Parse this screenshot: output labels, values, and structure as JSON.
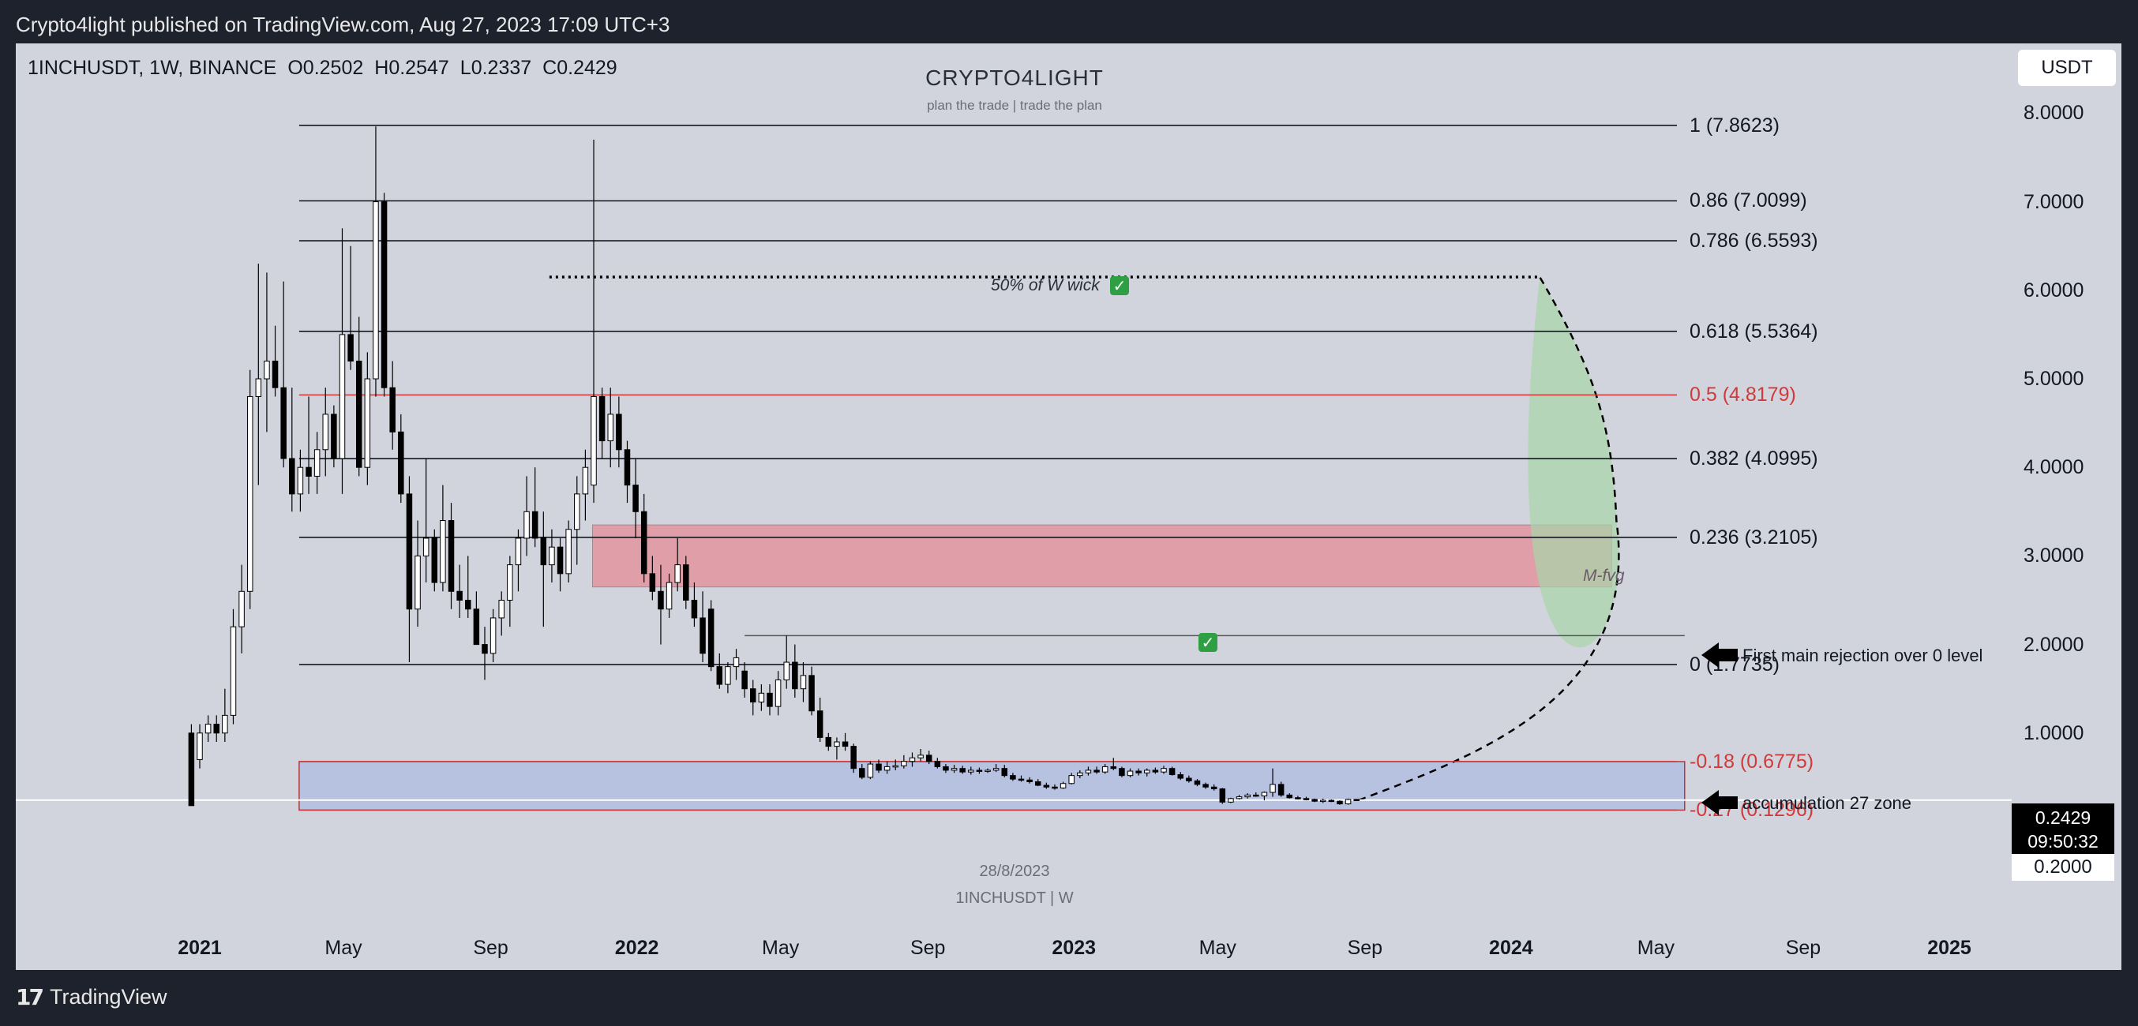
{
  "header": {
    "publisher": "Crypto4light published on TradingView.com, Aug 27, 2023 17:09 UTC+3"
  },
  "footer": {
    "brand": "TradingView",
    "logo_icon": "tradingview-logo-icon"
  },
  "legend": {
    "symbol": "1INCHUSDT, 1W, BINANCE",
    "open": "O0.2502",
    "high": "H0.2547",
    "low": "L0.2337",
    "close": "C0.2429"
  },
  "currency_button": "USDT",
  "watermark": {
    "title": "CRYPTO4LIGHT",
    "subtitle": "plan the trade | trade the plan",
    "date": "28/8/2023",
    "symbol": "1INCHUSDT | W"
  },
  "last_price": {
    "price": "0.2429",
    "countdown": "09:50:32",
    "round_level": "0.2000"
  },
  "annotations": {
    "wick": "50% of W wick",
    "fvg": "M-fvg",
    "rejection": "First main rejection over 0 level",
    "accumulation": "accumulation 27 zone"
  },
  "colors": {
    "background": "#d1d4dc",
    "candle_up": "#ffffff",
    "candle_down": "#000000",
    "fib_line": "#131722",
    "fib_red": "#d03a3a",
    "fvg_zone": "#e3959f",
    "accumulation_zone": "#b4bfe0",
    "projection": "#a8d5a8"
  },
  "chart_data": {
    "type": "candlestick",
    "symbol": "1INCHUSDT",
    "timeframe": "1W",
    "exchange": "BINANCE",
    "y_axis": {
      "ticks": [
        "8.0000",
        "7.0000",
        "6.0000",
        "5.0000",
        "4.0000",
        "3.0000",
        "2.0000",
        "1.0000"
      ],
      "range": [
        -1.1,
        8.5
      ]
    },
    "x_axis": {
      "ticks": [
        {
          "label": "2021",
          "bold": true,
          "date": "2021-01-01"
        },
        {
          "label": "May",
          "bold": false,
          "date": "2021-05-01"
        },
        {
          "label": "Sep",
          "bold": false,
          "date": "2021-09-01"
        },
        {
          "label": "2022",
          "bold": true,
          "date": "2022-01-01"
        },
        {
          "label": "May",
          "bold": false,
          "date": "2022-05-01"
        },
        {
          "label": "Sep",
          "bold": false,
          "date": "2022-09-01"
        },
        {
          "label": "2023",
          "bold": true,
          "date": "2023-01-01"
        },
        {
          "label": "May",
          "bold": false,
          "date": "2023-05-01"
        },
        {
          "label": "Sep",
          "bold": false,
          "date": "2023-09-01"
        },
        {
          "label": "2024",
          "bold": true,
          "date": "2024-01-01"
        },
        {
          "label": "May",
          "bold": false,
          "date": "2024-05-01"
        },
        {
          "label": "Sep",
          "bold": false,
          "date": "2024-09-01"
        },
        {
          "label": "2025",
          "bold": true,
          "date": "2025-01-01"
        }
      ]
    },
    "fib_levels": [
      {
        "label": "1 (7.8623)",
        "value": 7.8623,
        "color": "black"
      },
      {
        "label": "0.86 (7.0099)",
        "value": 7.0099,
        "color": "black"
      },
      {
        "label": "0.786 (6.5593)",
        "value": 6.5593,
        "color": "black"
      },
      {
        "label": "0.618 (5.5364)",
        "value": 5.5364,
        "color": "black"
      },
      {
        "label": "0.5 (4.8179)",
        "value": 4.8179,
        "color": "red"
      },
      {
        "label": "0.382 (4.0995)",
        "value": 4.0995,
        "color": "black"
      },
      {
        "label": "0.236 (3.2105)",
        "value": 3.2105,
        "color": "black"
      },
      {
        "label": "0 (1.7735)",
        "value": 1.7735,
        "color": "black"
      },
      {
        "label": "-0.18 (0.6775)",
        "value": 0.6775,
        "color": "red"
      },
      {
        "label": "-0.27 (0.1296)",
        "value": 0.1296,
        "color": "red"
      }
    ],
    "zones": [
      {
        "name": "M-fvg",
        "from": "2021-11-25",
        "to": "2024-03-25",
        "low": 2.65,
        "high": 3.35
      },
      {
        "name": "accumulation 27 zone",
        "from": "2021-03-25",
        "to": "2024-05-25",
        "low": 0.1296,
        "high": 0.6775
      }
    ],
    "lines": [
      {
        "name": "50% of W wick",
        "from": "2021-10-20",
        "to": "2024-01-25",
        "value": 6.15,
        "style": "dotted"
      },
      {
        "name": "First main rejection over 0 level",
        "from": "2022-04-01",
        "to": "2024-05-25",
        "value": 2.1
      }
    ],
    "projection": {
      "from": "2023-08-27",
      "start": 0.2429,
      "peak_date": "2024-01-25",
      "peak": 6.15,
      "end_date": "2024-03-29",
      "end": 3.4
    },
    "candles": [
      [
        "2020-12-25",
        1.0,
        1.1,
        0.18,
        0.18
      ],
      [
        "2021-01-01",
        0.7,
        1.1,
        0.6,
        1.0
      ],
      [
        "2021-01-08",
        1.0,
        1.2,
        0.9,
        1.1
      ],
      [
        "2021-01-15",
        1.1,
        1.2,
        0.9,
        1.0
      ],
      [
        "2021-01-22",
        1.0,
        1.5,
        0.9,
        1.2
      ],
      [
        "2021-01-29",
        1.2,
        2.4,
        1.1,
        2.2
      ],
      [
        "2021-02-05",
        2.2,
        2.9,
        1.9,
        2.6
      ],
      [
        "2021-02-12",
        2.6,
        5.1,
        2.4,
        4.8
      ],
      [
        "2021-02-19",
        4.8,
        6.3,
        3.8,
        5.0
      ],
      [
        "2021-02-26",
        5.0,
        6.2,
        4.4,
        5.2
      ],
      [
        "2021-03-05",
        5.2,
        5.6,
        4.8,
        4.9
      ],
      [
        "2021-03-12",
        4.9,
        6.1,
        4.0,
        4.1
      ],
      [
        "2021-03-19",
        4.1,
        4.9,
        3.5,
        3.7
      ],
      [
        "2021-03-26",
        3.7,
        4.2,
        3.5,
        4.0
      ],
      [
        "2021-04-02",
        4.0,
        4.8,
        3.7,
        3.9
      ],
      [
        "2021-04-09",
        3.9,
        4.4,
        3.7,
        4.2
      ],
      [
        "2021-04-16",
        4.2,
        4.9,
        3.9,
        4.6
      ],
      [
        "2021-04-23",
        4.6,
        4.7,
        4.0,
        4.1
      ],
      [
        "2021-04-30",
        4.1,
        6.7,
        3.7,
        5.5
      ],
      [
        "2021-05-07",
        5.5,
        6.5,
        5.1,
        5.2
      ],
      [
        "2021-05-14",
        5.2,
        5.7,
        3.9,
        4.0
      ],
      [
        "2021-05-21",
        4.0,
        5.3,
        3.8,
        5.0
      ],
      [
        "2021-05-28",
        5.0,
        7.85,
        4.8,
        7.0
      ],
      [
        "2021-06-04",
        7.0,
        7.1,
        4.8,
        4.9
      ],
      [
        "2021-06-11",
        4.9,
        5.2,
        4.2,
        4.4
      ],
      [
        "2021-06-18",
        4.4,
        4.6,
        3.6,
        3.7
      ],
      [
        "2021-06-25",
        3.7,
        3.9,
        1.8,
        2.4
      ],
      [
        "2021-07-02",
        2.4,
        3.4,
        2.2,
        3.0
      ],
      [
        "2021-07-09",
        3.0,
        4.1,
        2.7,
        3.2
      ],
      [
        "2021-07-16",
        3.2,
        3.3,
        2.6,
        2.7
      ],
      [
        "2021-07-23",
        2.7,
        3.8,
        2.6,
        3.4
      ],
      [
        "2021-07-30",
        3.4,
        3.6,
        2.4,
        2.6
      ],
      [
        "2021-08-06",
        2.6,
        2.9,
        2.3,
        2.5
      ],
      [
        "2021-08-13",
        2.5,
        3.0,
        2.3,
        2.4
      ],
      [
        "2021-08-20",
        2.4,
        2.6,
        2.0,
        2.0
      ],
      [
        "2021-08-27",
        2.0,
        2.2,
        1.6,
        1.9
      ],
      [
        "2021-09-03",
        1.9,
        2.4,
        1.8,
        2.3
      ],
      [
        "2021-09-10",
        2.3,
        2.6,
        2.1,
        2.5
      ],
      [
        "2021-09-17",
        2.5,
        3.0,
        2.2,
        2.9
      ],
      [
        "2021-09-24",
        2.9,
        3.3,
        2.6,
        3.2
      ],
      [
        "2021-10-01",
        3.2,
        3.9,
        3.0,
        3.5
      ],
      [
        "2021-10-08",
        3.5,
        4.0,
        3.1,
        3.2
      ],
      [
        "2021-10-15",
        3.2,
        3.5,
        2.2,
        2.9
      ],
      [
        "2021-10-22",
        2.9,
        3.3,
        2.7,
        3.1
      ],
      [
        "2021-10-29",
        3.1,
        3.2,
        2.6,
        2.8
      ],
      [
        "2021-11-05",
        2.8,
        3.4,
        2.7,
        3.3
      ],
      [
        "2021-11-12",
        3.3,
        3.9,
        2.9,
        3.7
      ],
      [
        "2021-11-19",
        3.7,
        4.2,
        3.4,
        4.0
      ],
      [
        "2021-11-26",
        3.8,
        7.7,
        3.6,
        4.8
      ],
      [
        "2021-12-03",
        4.8,
        4.9,
        4.1,
        4.3
      ],
      [
        "2021-12-10",
        4.3,
        4.9,
        4.0,
        4.6
      ],
      [
        "2021-12-17",
        4.6,
        4.8,
        4.0,
        4.2
      ],
      [
        "2021-12-24",
        4.2,
        4.3,
        3.6,
        3.8
      ],
      [
        "2021-12-31",
        3.8,
        4.1,
        3.2,
        3.5
      ],
      [
        "2022-01-07",
        3.5,
        3.7,
        2.7,
        2.8
      ],
      [
        "2022-01-14",
        2.8,
        3.0,
        2.5,
        2.6
      ],
      [
        "2022-01-21",
        2.6,
        2.9,
        2.0,
        2.4
      ],
      [
        "2022-01-28",
        2.4,
        2.8,
        2.3,
        2.7
      ],
      [
        "2022-02-04",
        2.7,
        3.2,
        2.6,
        2.9
      ],
      [
        "2022-02-11",
        2.9,
        3.0,
        2.4,
        2.5
      ],
      [
        "2022-02-18",
        2.5,
        2.7,
        2.2,
        2.3
      ],
      [
        "2022-02-25",
        2.3,
        2.6,
        1.8,
        1.9
      ],
      [
        "2022-03-04",
        2.4,
        2.5,
        1.7,
        1.75
      ],
      [
        "2022-03-11",
        1.75,
        1.9,
        1.5,
        1.55
      ],
      [
        "2022-03-18",
        1.55,
        1.8,
        1.45,
        1.75
      ],
      [
        "2022-03-25",
        1.75,
        1.95,
        1.6,
        1.85
      ],
      [
        "2022-04-01",
        1.7,
        1.8,
        1.4,
        1.5
      ],
      [
        "2022-04-08",
        1.5,
        1.6,
        1.2,
        1.35
      ],
      [
        "2022-04-15",
        1.35,
        1.55,
        1.25,
        1.45
      ],
      [
        "2022-04-22",
        1.45,
        1.55,
        1.2,
        1.3
      ],
      [
        "2022-04-29",
        1.3,
        1.7,
        1.2,
        1.6
      ],
      [
        "2022-05-06",
        1.6,
        2.1,
        1.5,
        1.8
      ],
      [
        "2022-05-13",
        1.8,
        2.0,
        1.4,
        1.5
      ],
      [
        "2022-05-20",
        1.5,
        1.8,
        1.35,
        1.65
      ],
      [
        "2022-05-27",
        1.65,
        1.75,
        1.2,
        1.25
      ],
      [
        "2022-06-03",
        1.25,
        1.4,
        0.9,
        0.95
      ],
      [
        "2022-06-10",
        0.95,
        1.0,
        0.8,
        0.85
      ],
      [
        "2022-06-17",
        0.85,
        0.95,
        0.7,
        0.9
      ],
      [
        "2022-06-24",
        0.9,
        1.0,
        0.8,
        0.85
      ],
      [
        "2022-07-01",
        0.85,
        0.88,
        0.55,
        0.6
      ],
      [
        "2022-07-08",
        0.6,
        0.65,
        0.48,
        0.5
      ],
      [
        "2022-07-15",
        0.5,
        0.68,
        0.48,
        0.65
      ],
      [
        "2022-07-22",
        0.65,
        0.7,
        0.55,
        0.58
      ],
      [
        "2022-07-29",
        0.58,
        0.68,
        0.54,
        0.62
      ],
      [
        "2022-08-05",
        0.62,
        0.7,
        0.58,
        0.63
      ],
      [
        "2022-08-12",
        0.63,
        0.75,
        0.6,
        0.68
      ],
      [
        "2022-08-19",
        0.68,
        0.78,
        0.62,
        0.72
      ],
      [
        "2022-08-26",
        0.72,
        0.82,
        0.68,
        0.75
      ],
      [
        "2022-09-02",
        0.75,
        0.8,
        0.65,
        0.68
      ],
      [
        "2022-09-09",
        0.68,
        0.72,
        0.6,
        0.62
      ],
      [
        "2022-09-16",
        0.62,
        0.65,
        0.55,
        0.58
      ],
      [
        "2022-09-23",
        0.58,
        0.64,
        0.55,
        0.6
      ],
      [
        "2022-09-30",
        0.6,
        0.63,
        0.54,
        0.56
      ],
      [
        "2022-10-07",
        0.56,
        0.62,
        0.53,
        0.58
      ],
      [
        "2022-10-14",
        0.58,
        0.61,
        0.54,
        0.57
      ],
      [
        "2022-10-21",
        0.57,
        0.6,
        0.55,
        0.58
      ],
      [
        "2022-10-28",
        0.58,
        0.65,
        0.56,
        0.6
      ],
      [
        "2022-11-04",
        0.6,
        0.64,
        0.5,
        0.52
      ],
      [
        "2022-11-11",
        0.52,
        0.55,
        0.46,
        0.48
      ],
      [
        "2022-11-18",
        0.48,
        0.52,
        0.45,
        0.47
      ],
      [
        "2022-11-25",
        0.47,
        0.5,
        0.43,
        0.45
      ],
      [
        "2022-12-02",
        0.45,
        0.48,
        0.4,
        0.41
      ],
      [
        "2022-12-09",
        0.41,
        0.44,
        0.37,
        0.39
      ],
      [
        "2022-12-16",
        0.39,
        0.42,
        0.36,
        0.38
      ],
      [
        "2022-12-23",
        0.38,
        0.45,
        0.37,
        0.43
      ],
      [
        "2022-12-30",
        0.43,
        0.55,
        0.42,
        0.52
      ],
      [
        "2023-01-06",
        0.52,
        0.58,
        0.49,
        0.55
      ],
      [
        "2023-01-13",
        0.55,
        0.62,
        0.52,
        0.58
      ],
      [
        "2023-01-20",
        0.58,
        0.62,
        0.54,
        0.56
      ],
      [
        "2023-01-27",
        0.56,
        0.65,
        0.54,
        0.62
      ],
      [
        "2023-02-03",
        0.62,
        0.72,
        0.58,
        0.6
      ],
      [
        "2023-02-10",
        0.6,
        0.62,
        0.5,
        0.52
      ],
      [
        "2023-02-17",
        0.52,
        0.6,
        0.5,
        0.57
      ],
      [
        "2023-02-24",
        0.57,
        0.6,
        0.52,
        0.55
      ],
      [
        "2023-03-03",
        0.55,
        0.6,
        0.51,
        0.58
      ],
      [
        "2023-03-10",
        0.58,
        0.61,
        0.54,
        0.56
      ],
      [
        "2023-03-17",
        0.56,
        0.63,
        0.54,
        0.6
      ],
      [
        "2023-03-24",
        0.6,
        0.62,
        0.52,
        0.53
      ],
      [
        "2023-03-31",
        0.53,
        0.56,
        0.47,
        0.49
      ],
      [
        "2023-04-07",
        0.49,
        0.52,
        0.44,
        0.46
      ],
      [
        "2023-04-14",
        0.46,
        0.48,
        0.4,
        0.42
      ],
      [
        "2023-04-21",
        0.42,
        0.44,
        0.37,
        0.39
      ],
      [
        "2023-04-28",
        0.39,
        0.42,
        0.35,
        0.37
      ],
      [
        "2023-05-05",
        0.37,
        0.38,
        0.2,
        0.22
      ],
      [
        "2023-05-12",
        0.22,
        0.27,
        0.21,
        0.26
      ],
      [
        "2023-05-19",
        0.26,
        0.3,
        0.25,
        0.28
      ],
      [
        "2023-05-26",
        0.28,
        0.32,
        0.26,
        0.3
      ],
      [
        "2023-06-02",
        0.3,
        0.33,
        0.28,
        0.29
      ],
      [
        "2023-06-09",
        0.29,
        0.34,
        0.24,
        0.33
      ],
      [
        "2023-06-16",
        0.33,
        0.6,
        0.28,
        0.42
      ],
      [
        "2023-06-23",
        0.42,
        0.45,
        0.28,
        0.3
      ],
      [
        "2023-06-30",
        0.3,
        0.32,
        0.26,
        0.27
      ],
      [
        "2023-07-07",
        0.27,
        0.29,
        0.25,
        0.26
      ],
      [
        "2023-07-14",
        0.26,
        0.28,
        0.24,
        0.25
      ],
      [
        "2023-07-21",
        0.25,
        0.26,
        0.22,
        0.23
      ],
      [
        "2023-07-28",
        0.23,
        0.26,
        0.21,
        0.24
      ],
      [
        "2023-08-04",
        0.24,
        0.25,
        0.22,
        0.23
      ],
      [
        "2023-08-11",
        0.23,
        0.24,
        0.19,
        0.2
      ],
      [
        "2023-08-18",
        0.2,
        0.26,
        0.19,
        0.25
      ],
      [
        "2023-08-25",
        0.2502,
        0.2547,
        0.2337,
        0.2429
      ]
    ]
  }
}
